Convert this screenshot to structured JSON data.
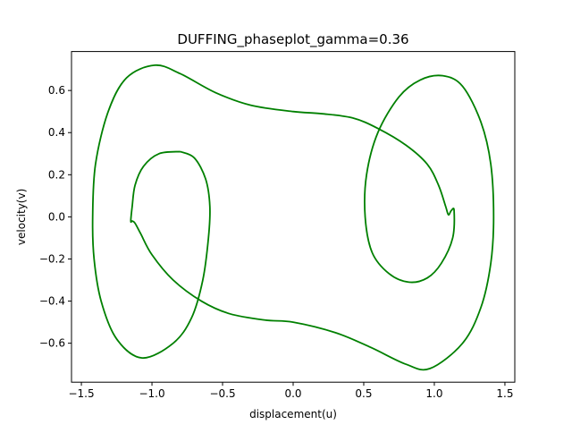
{
  "chart_data": {
    "type": "line",
    "title": "DUFFING_phaseplot_gamma=0.36",
    "xlabel": "displacement(u)",
    "ylabel": "velocity(v)",
    "xlim": [
      -1.57,
      1.57
    ],
    "ylim": [
      -0.785,
      0.785
    ],
    "x_ticks": [
      -1.5,
      -1.0,
      -0.5,
      0.0,
      0.5,
      1.0,
      1.5
    ],
    "x_tick_labels": [
      "−1.5",
      "−1.0",
      "−0.5",
      "0.0",
      "0.5",
      "1.0",
      "1.5"
    ],
    "y_ticks": [
      -0.6,
      -0.4,
      -0.2,
      0.0,
      0.2,
      0.4,
      0.6
    ],
    "y_tick_labels": [
      "−0.6",
      "−0.4",
      "−0.2",
      "0.0",
      "0.2",
      "0.4",
      "0.6"
    ],
    "grid": false,
    "legend": "none",
    "line_color": "#008000",
    "series": [
      {
        "values": [
          [
            -0.8,
            0.31
          ],
          [
            -0.7,
            0.28
          ],
          [
            -0.62,
            0.18
          ],
          [
            -0.59,
            0.05
          ],
          [
            -0.6,
            -0.1
          ],
          [
            -0.64,
            -0.3
          ],
          [
            -0.72,
            -0.48
          ],
          [
            -0.85,
            -0.6
          ],
          [
            -1.07,
            -0.67
          ],
          [
            -1.25,
            -0.58
          ],
          [
            -1.36,
            -0.4
          ],
          [
            -1.41,
            -0.2
          ],
          [
            -1.42,
            0.0
          ],
          [
            -1.4,
            0.25
          ],
          [
            -1.31,
            0.5
          ],
          [
            -1.18,
            0.66
          ],
          [
            -0.98,
            0.72
          ],
          [
            -0.8,
            0.68
          ],
          [
            -0.55,
            0.59
          ],
          [
            -0.3,
            0.53
          ],
          [
            0.0,
            0.5
          ],
          [
            0.2,
            0.49
          ],
          [
            0.42,
            0.47
          ],
          [
            0.6,
            0.42
          ],
          [
            0.8,
            0.34
          ],
          [
            0.95,
            0.25
          ],
          [
            1.03,
            0.15
          ],
          [
            1.08,
            0.05
          ],
          [
            1.1,
            0.01
          ],
          [
            1.12,
            0.03
          ],
          [
            1.14,
            0.03
          ],
          [
            1.13,
            -0.1
          ],
          [
            1.05,
            -0.22
          ],
          [
            0.95,
            -0.29
          ],
          [
            0.82,
            -0.31
          ],
          [
            0.68,
            -0.27
          ],
          [
            0.56,
            -0.17
          ],
          [
            0.51,
            0.0
          ],
          [
            0.52,
            0.2
          ],
          [
            0.6,
            0.4
          ],
          [
            0.75,
            0.57
          ],
          [
            0.9,
            0.65
          ],
          [
            1.06,
            0.67
          ],
          [
            1.2,
            0.62
          ],
          [
            1.33,
            0.45
          ],
          [
            1.4,
            0.25
          ],
          [
            1.42,
            0.0
          ],
          [
            1.4,
            -0.22
          ],
          [
            1.33,
            -0.43
          ],
          [
            1.2,
            -0.6
          ],
          [
            0.97,
            -0.72
          ],
          [
            0.8,
            -0.7
          ],
          [
            0.55,
            -0.62
          ],
          [
            0.3,
            -0.55
          ],
          [
            0.0,
            -0.5
          ],
          [
            -0.2,
            -0.49
          ],
          [
            -0.45,
            -0.46
          ],
          [
            -0.65,
            -0.4
          ],
          [
            -0.85,
            -0.3
          ],
          [
            -1.0,
            -0.18
          ],
          [
            -1.08,
            -0.08
          ],
          [
            -1.12,
            -0.03
          ],
          [
            -1.14,
            -0.02
          ],
          [
            -1.15,
            -0.02
          ],
          [
            -1.14,
            0.05
          ],
          [
            -1.12,
            0.15
          ],
          [
            -1.06,
            0.24
          ],
          [
            -0.95,
            0.3
          ],
          [
            -0.8,
            0.31
          ]
        ]
      }
    ]
  }
}
